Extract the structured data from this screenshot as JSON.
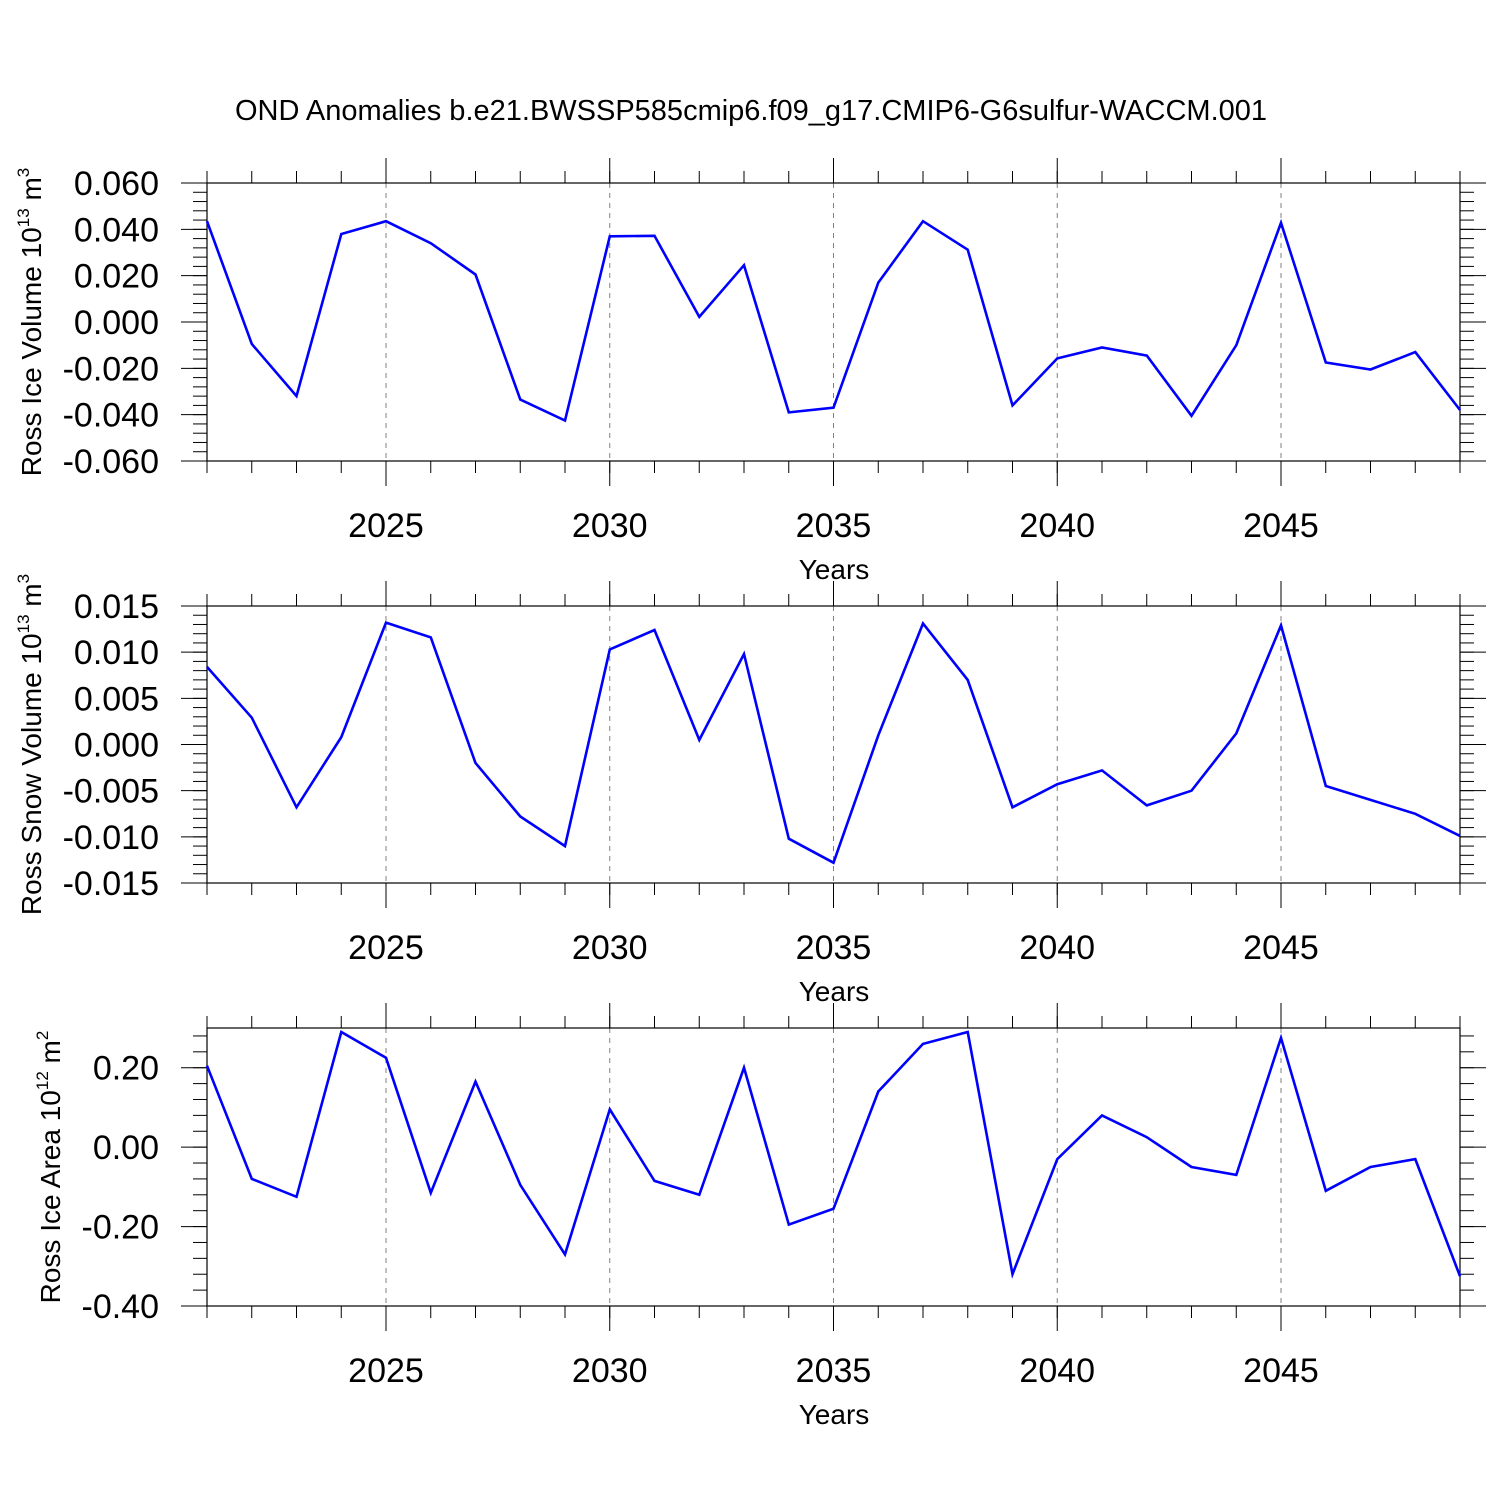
{
  "title": "OND Anomalies b.e21.BWSSP585cmip6.f09_g17.CMIP6-G6sulfur-WACCM.001",
  "colors": {
    "line": "#0000ff",
    "axis": "#000000",
    "grid": "#808080",
    "background": "#ffffff"
  },
  "chart_data": [
    {
      "type": "line",
      "name": "Ross Ice Volume",
      "ylabel": "Ross Ice Volume 10",
      "ylabel_exponent": "13",
      "ylabel_unit": "m",
      "ylabel_unit_exponent": "3",
      "xlabel": "Years",
      "xlim": [
        2021,
        2049
      ],
      "ylim": [
        -0.06,
        0.06
      ],
      "yticks": [
        -0.06,
        -0.04,
        -0.02,
        0.0,
        0.02,
        0.04,
        0.06
      ],
      "ytick_labels": [
        "-0.060",
        "-0.040",
        "-0.020",
        "0.000",
        "0.020",
        "0.040",
        "0.060"
      ],
      "xticks": [
        2025,
        2030,
        2035,
        2040,
        2045
      ],
      "xtick_labels": [
        "2025",
        "2030",
        "2035",
        "2040",
        "2045"
      ],
      "grid": "vertical dashed at major x ticks",
      "x": [
        2021,
        2022,
        2023,
        2024,
        2025,
        2026,
        2027,
        2028,
        2029,
        2030,
        2031,
        2032,
        2033,
        2034,
        2035,
        2036,
        2037,
        2038,
        2039,
        2040,
        2041,
        2042,
        2043,
        2044,
        2045,
        2046,
        2047,
        2048,
        2049
      ],
      "values": [
        0.0435,
        -0.0095,
        -0.032,
        0.038,
        0.0435,
        0.034,
        0.0205,
        -0.0335,
        -0.0425,
        0.037,
        0.0372,
        0.0022,
        0.0245,
        -0.039,
        -0.037,
        0.017,
        0.0435,
        0.0312,
        -0.036,
        -0.0157,
        -0.011,
        -0.0145,
        -0.0405,
        -0.01,
        0.0428,
        -0.0175,
        -0.0205,
        -0.013,
        -0.038
      ]
    },
    {
      "type": "line",
      "name": "Ross Snow Volume",
      "ylabel": "Ross Snow Volume 10",
      "ylabel_exponent": "13",
      "ylabel_unit": "m",
      "ylabel_unit_exponent": "3",
      "xlabel": "Years",
      "xlim": [
        2021,
        2049
      ],
      "ylim": [
        -0.015,
        0.015
      ],
      "yticks": [
        -0.015,
        -0.01,
        -0.005,
        0.0,
        0.005,
        0.01,
        0.015
      ],
      "ytick_labels": [
        "-0.015",
        "-0.010",
        "-0.005",
        "0.000",
        "0.005",
        "0.010",
        "0.015"
      ],
      "xticks": [
        2025,
        2030,
        2035,
        2040,
        2045
      ],
      "xtick_labels": [
        "2025",
        "2030",
        "2035",
        "2040",
        "2045"
      ],
      "grid": "vertical dashed at major x ticks",
      "x": [
        2021,
        2022,
        2023,
        2024,
        2025,
        2026,
        2027,
        2028,
        2029,
        2030,
        2031,
        2032,
        2033,
        2034,
        2035,
        2036,
        2037,
        2038,
        2039,
        2040,
        2041,
        2042,
        2043,
        2044,
        2045,
        2046,
        2047,
        2048,
        2049
      ],
      "values": [
        0.0084,
        0.0029,
        -0.0068,
        0.0008,
        0.0132,
        0.0116,
        -0.002,
        -0.0078,
        -0.011,
        0.0103,
        0.0124,
        0.0005,
        0.0098,
        -0.0102,
        -0.0128,
        0.001,
        0.0131,
        0.007,
        -0.0068,
        -0.0043,
        -0.0028,
        -0.0066,
        -0.005,
        0.0012,
        0.0129,
        -0.0045,
        -0.006,
        -0.0075,
        -0.0099
      ]
    },
    {
      "type": "line",
      "name": "Ross Ice Area",
      "ylabel": "Ross Ice Area 10",
      "ylabel_exponent": "12",
      "ylabel_unit": "m",
      "ylabel_unit_exponent": "2",
      "xlabel": "Years",
      "xlim": [
        2021,
        2049
      ],
      "ylim": [
        -0.4,
        0.3
      ],
      "yticks": [
        -0.4,
        -0.2,
        0.0,
        0.2
      ],
      "ytick_labels": [
        "-0.40",
        "-0.20",
        "0.00",
        "0.20"
      ],
      "xticks": [
        2025,
        2030,
        2035,
        2040,
        2045
      ],
      "xtick_labels": [
        "2025",
        "2030",
        "2035",
        "2040",
        "2045"
      ],
      "grid": "vertical dashed at major x ticks",
      "x": [
        2021,
        2022,
        2023,
        2024,
        2025,
        2026,
        2027,
        2028,
        2029,
        2030,
        2031,
        2032,
        2033,
        2034,
        2035,
        2036,
        2037,
        2038,
        2039,
        2040,
        2041,
        2042,
        2043,
        2044,
        2045,
        2046,
        2047,
        2048,
        2049
      ],
      "values": [
        0.205,
        -0.08,
        -0.125,
        0.29,
        0.225,
        -0.115,
        0.165,
        -0.095,
        -0.27,
        0.095,
        -0.085,
        -0.12,
        0.2,
        -0.195,
        -0.155,
        0.14,
        0.26,
        0.29,
        -0.32,
        -0.03,
        0.08,
        0.025,
        -0.05,
        -0.07,
        0.275,
        -0.11,
        -0.05,
        -0.03,
        -0.325
      ]
    }
  ]
}
